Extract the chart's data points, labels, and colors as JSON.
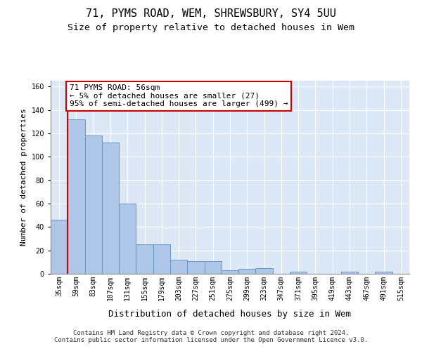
{
  "title1": "71, PYMS ROAD, WEM, SHREWSBURY, SY4 5UU",
  "title2": "Size of property relative to detached houses in Wem",
  "xlabel": "Distribution of detached houses by size in Wem",
  "ylabel": "Number of detached properties",
  "categories": [
    "35sqm",
    "59sqm",
    "83sqm",
    "107sqm",
    "131sqm",
    "155sqm",
    "179sqm",
    "203sqm",
    "227sqm",
    "251sqm",
    "275sqm",
    "299sqm",
    "323sqm",
    "347sqm",
    "371sqm",
    "395sqm",
    "419sqm",
    "443sqm",
    "467sqm",
    "491sqm",
    "515sqm"
  ],
  "values": [
    46,
    132,
    118,
    112,
    60,
    25,
    25,
    12,
    11,
    11,
    3,
    4,
    5,
    0,
    2,
    0,
    0,
    2,
    0,
    2,
    0
  ],
  "bar_color": "#aec6e8",
  "bar_edge_color": "#5a8fc0",
  "annotation_text": "71 PYMS ROAD: 56sqm\n← 5% of detached houses are smaller (27)\n95% of semi-detached houses are larger (499) →",
  "annotation_box_color": "#ffffff",
  "annotation_border_color": "#cc0000",
  "property_line_color": "#cc0000",
  "ylim": [
    0,
    165
  ],
  "yticks": [
    0,
    20,
    40,
    60,
    80,
    100,
    120,
    140,
    160
  ],
  "background_color": "#dce8f5",
  "grid_color": "#ffffff",
  "footnote": "Contains HM Land Registry data © Crown copyright and database right 2024.\nContains public sector information licensed under the Open Government Licence v3.0.",
  "title1_fontsize": 11,
  "title2_fontsize": 9.5,
  "xlabel_fontsize": 9,
  "ylabel_fontsize": 8,
  "tick_fontsize": 7,
  "annotation_fontsize": 8,
  "footnote_fontsize": 6.5
}
